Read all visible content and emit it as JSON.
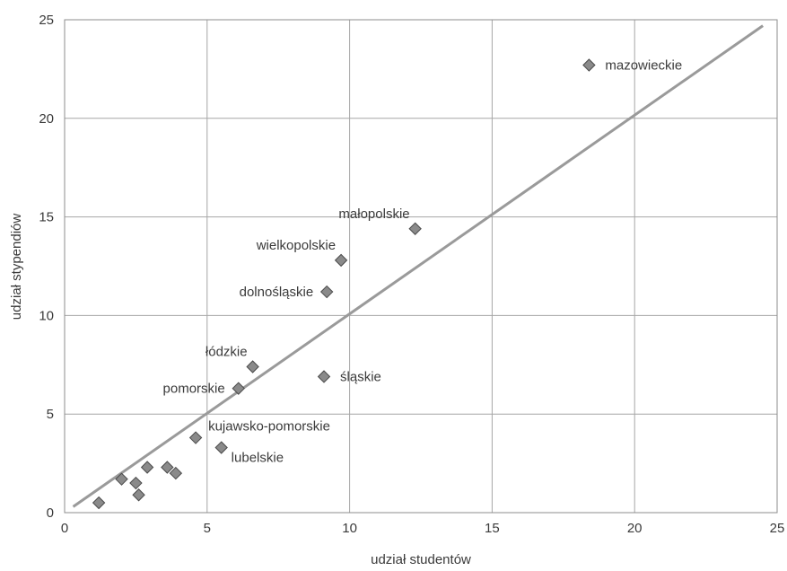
{
  "chart_data": {
    "type": "scatter",
    "title": "",
    "xlabel": "udział studentów",
    "ylabel": "udział stypendiów",
    "xlim": [
      0,
      25
    ],
    "ylim": [
      0,
      25
    ],
    "xticks": [
      0,
      5,
      10,
      15,
      20,
      25
    ],
    "yticks": [
      0,
      5,
      10,
      15,
      20,
      25
    ],
    "grid": true,
    "legend": "none",
    "marker": "diamond",
    "marker_color": "#8a8a8a",
    "line_color": "#9a9a9a",
    "trend_line": {
      "x": [
        0.3,
        24.5
      ],
      "y": [
        0.3,
        24.7
      ]
    },
    "points": [
      {
        "x": 18.4,
        "y": 22.7,
        "label": "mazowieckie",
        "label_pos": "right"
      },
      {
        "x": 12.3,
        "y": 14.4,
        "label": "małopolskie",
        "label_pos": "above-left"
      },
      {
        "x": 9.7,
        "y": 12.8,
        "label": "wielkopolskie",
        "label_pos": "above-left"
      },
      {
        "x": 9.2,
        "y": 11.2,
        "label": "dolnośląskie",
        "label_pos": "left"
      },
      {
        "x": 6.6,
        "y": 7.4,
        "label": "łódzkie",
        "label_pos": "above-left"
      },
      {
        "x": 9.1,
        "y": 6.9,
        "label": "śląskie",
        "label_pos": "right"
      },
      {
        "x": 6.1,
        "y": 6.3,
        "label": "pomorskie",
        "label_pos": "left"
      },
      {
        "x": 4.6,
        "y": 3.8,
        "label": "kujawsko-pomorskie",
        "label_pos": "above-right"
      },
      {
        "x": 5.5,
        "y": 3.3,
        "label": "lubelskie",
        "label_pos": "below-right"
      },
      {
        "x": 2.0,
        "y": 1.7,
        "label": ""
      },
      {
        "x": 2.9,
        "y": 2.3,
        "label": ""
      },
      {
        "x": 3.6,
        "y": 2.3,
        "label": ""
      },
      {
        "x": 3.9,
        "y": 2.0,
        "label": ""
      },
      {
        "x": 2.5,
        "y": 1.5,
        "label": ""
      },
      {
        "x": 2.6,
        "y": 0.9,
        "label": ""
      },
      {
        "x": 1.2,
        "y": 0.5,
        "label": ""
      }
    ]
  }
}
